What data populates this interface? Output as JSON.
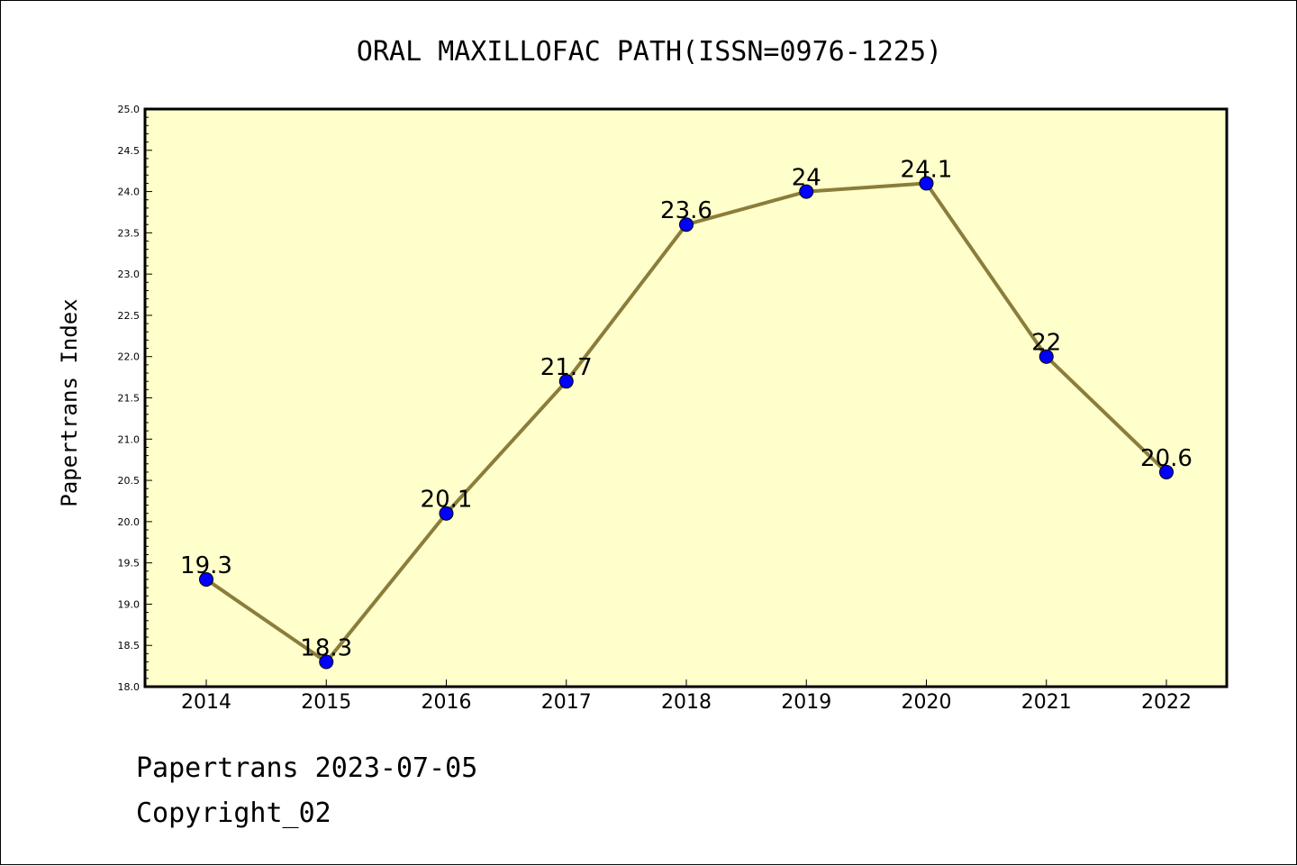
{
  "chart_data": {
    "type": "line",
    "title": "ORAL MAXILLOFAC PATH(ISSN=0976-1225)",
    "xlabel": "",
    "ylabel": "Papertrans Index",
    "categories": [
      "2014",
      "2015",
      "2016",
      "2017",
      "2018",
      "2019",
      "2020",
      "2021",
      "2022"
    ],
    "values": [
      19.3,
      18.3,
      20.1,
      21.7,
      23.6,
      24,
      24.1,
      22,
      20.6
    ],
    "data_labels": [
      "19.3",
      "18.3",
      "20.1",
      "21.7",
      "23.6",
      "24",
      "24.1",
      "22",
      "20.6"
    ],
    "ylim": [
      18.0,
      25.0
    ],
    "yticks": [
      "18.0",
      "18.5",
      "19.0",
      "19.5",
      "20.0",
      "20.5",
      "21.0",
      "21.5",
      "22.0",
      "22.5",
      "23.0",
      "23.5",
      "24.0",
      "24.5",
      "25.0"
    ],
    "grid": false,
    "colors": {
      "plot_background": "#ffffcc",
      "line": "#8b7d3a",
      "marker": "#0000ff"
    }
  },
  "footer": {
    "line1": "Papertrans 2023-07-05",
    "line2": "Copyright_02"
  }
}
